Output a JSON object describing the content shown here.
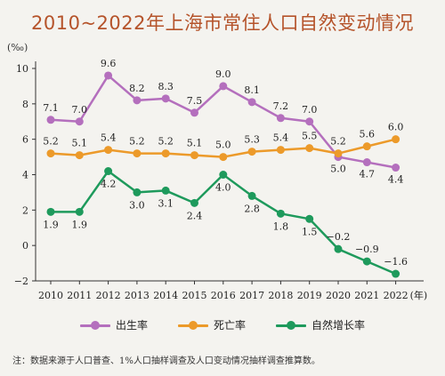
{
  "title": "2010~2022年上海市常住人口自然变动情况",
  "note": "注：数据来源于人口普查、1%人口抽样调查及人口变动情况抽样调查推算数。",
  "chart_data": {
    "type": "line",
    "ylabel": "(‰)",
    "x_suffix": "(年)",
    "ylim": [
      -2,
      10
    ],
    "yticks": [
      -2,
      0,
      2,
      4,
      6,
      8,
      10
    ],
    "categories": [
      "2010",
      "2011",
      "2012",
      "2013",
      "2014",
      "2015",
      "2016",
      "2017",
      "2018",
      "2019",
      "2020",
      "2021",
      "2022"
    ],
    "grid": false,
    "legend_position": "bottom",
    "series": [
      {
        "name": "出生率",
        "color": "#b46fbd",
        "values": [
          7.1,
          7.0,
          9.6,
          8.2,
          8.3,
          7.5,
          9.0,
          8.1,
          7.2,
          7.0,
          5.0,
          4.7,
          4.4
        ],
        "labels": [
          "7.1",
          "7.0",
          "9.6",
          "8.2",
          "8.3",
          "7.5",
          "9.0",
          "8.1",
          "7.2",
          "7.0",
          "5.0",
          "4.7",
          "4.4"
        ]
      },
      {
        "name": "死亡率",
        "color": "#ec9a2a",
        "values": [
          5.2,
          5.1,
          5.4,
          5.2,
          5.2,
          5.1,
          5.0,
          5.3,
          5.4,
          5.5,
          5.2,
          5.6,
          6.0
        ],
        "labels": [
          "5.2",
          "5.1",
          "5.4",
          "5.2",
          "5.2",
          "5.1",
          "5.0",
          "5.3",
          "5.4",
          "5.5",
          "5.2",
          "5.6",
          "6.0"
        ]
      },
      {
        "name": "自然增长率",
        "color": "#1e9a5c",
        "values": [
          1.9,
          1.9,
          4.2,
          3.0,
          3.1,
          2.4,
          4.0,
          2.8,
          1.8,
          1.5,
          -0.2,
          -0.9,
          -1.6
        ],
        "labels": [
          "1.9",
          "1.9",
          "4.2",
          "3.0",
          "3.1",
          "2.4",
          "4.0",
          "2.8",
          "1.8",
          "1.5",
          "−0.2",
          "−0.9",
          "−1.6"
        ]
      }
    ]
  }
}
